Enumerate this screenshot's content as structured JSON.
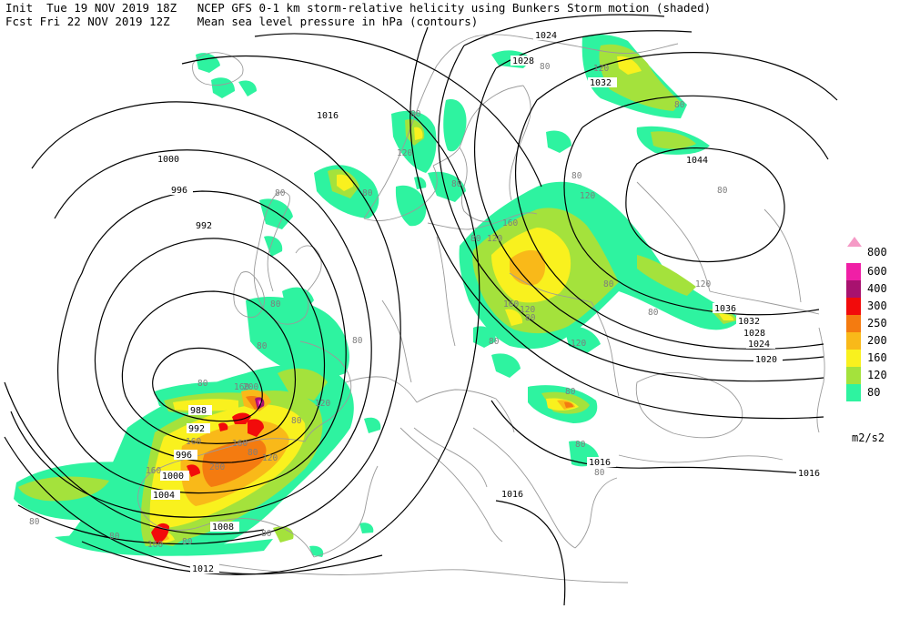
{
  "header": {
    "line1": "Init  Tue 19 NOV 2019 18Z   NCEP GFS 0-1 km storm-relative helicity using Bunkers Storm motion (shaded)",
    "line2": "Fcst Fri 22 NOV 2019 12Z    Mean sea level pressure in hPa (contours)"
  },
  "legend": {
    "units": "m2/s2",
    "levels": [
      {
        "label": "800",
        "color": "#f59ac6"
      },
      {
        "label": "600",
        "color": "#f01fa6"
      },
      {
        "label": "400",
        "color": "#a8126f"
      },
      {
        "label": "300",
        "color": "#f20b0b"
      },
      {
        "label": "250",
        "color": "#f47b10"
      },
      {
        "label": "200",
        "color": "#f9b919"
      },
      {
        "label": "160",
        "color": "#f9f11e"
      },
      {
        "label": "120",
        "color": "#a4e23c"
      },
      {
        "label": "80",
        "color": "#2ef3a0"
      }
    ]
  },
  "pressure_labels": [
    "1024",
    "1028",
    "1032",
    "1016",
    "1000",
    "996",
    "992",
    "1044",
    "1036",
    "1032",
    "1028",
    "1024",
    "1020",
    "988",
    "992",
    "996",
    "1000",
    "1004",
    "1008",
    "1012",
    "1016",
    "1016",
    "1016"
  ],
  "helicity_labels": [
    "120",
    "80",
    "80",
    "120",
    "80",
    "120",
    "80",
    "80",
    "80",
    "80",
    "80",
    "120",
    "160",
    "80",
    "80",
    "120",
    "160",
    "80",
    "80",
    "80",
    "80",
    "80",
    "80",
    "80",
    "120",
    "80",
    "120",
    "120",
    "160",
    "80",
    "200",
    "160",
    "200",
    "80",
    "120",
    "160",
    "160",
    "80",
    "80",
    "80",
    "80",
    "80",
    "160",
    "80"
  ],
  "colors": {
    "coast": "#9a9a9a",
    "contour": "#000000"
  }
}
